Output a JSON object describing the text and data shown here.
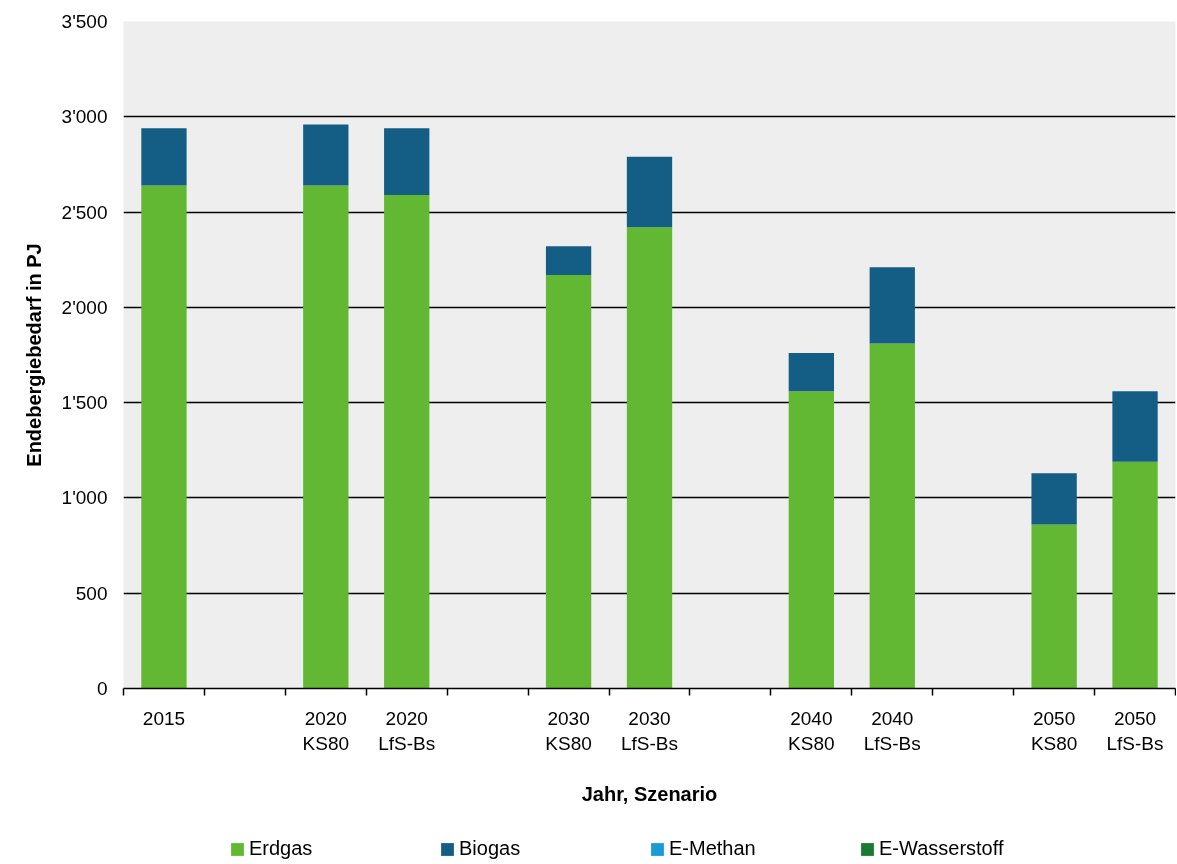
{
  "chart_data": {
    "type": "bar",
    "stacked": true,
    "xlabel": "Jahr, Szenario",
    "ylabel": "Endebergiebedarf in PJ",
    "categories": [
      "2015",
      null,
      "2020\nKS80",
      "2020\nLfS-Bs",
      null,
      "2030\nKS80",
      "2030\nLfS-Bs",
      null,
      "2040\nKS80",
      "2040\nLfS-Bs",
      null,
      "2050\nKS80",
      "2050\nLfS-Bs"
    ],
    "series": [
      {
        "name": "Erdgas",
        "color": "#62b733",
        "values": [
          2640,
          null,
          2640,
          2590,
          null,
          2170,
          2420,
          null,
          1560,
          1810,
          null,
          860,
          1190
        ]
      },
      {
        "name": "Biogas",
        "color": "#145e86",
        "values": [
          300,
          null,
          320,
          350,
          null,
          150,
          370,
          null,
          200,
          400,
          null,
          270,
          370
        ]
      },
      {
        "name": "E-Methan",
        "color": "#1a9ad6",
        "values": [
          0,
          null,
          0,
          0,
          null,
          0,
          0,
          null,
          0,
          0,
          null,
          0,
          0
        ]
      },
      {
        "name": "E-Wasserstoff",
        "color": "#1a7a30",
        "values": [
          0,
          null,
          0,
          0,
          null,
          0,
          0,
          null,
          0,
          0,
          null,
          0,
          0
        ]
      }
    ],
    "ylim": [
      0,
      3500
    ],
    "yticks": [
      0,
      500,
      {
        "value": 1000,
        "label": "1'000"
      },
      {
        "value": 1500,
        "label": "1'500"
      },
      {
        "value": 2000,
        "label": "2'000"
      },
      {
        "value": 2500,
        "label": "2'500"
      },
      {
        "value": 3000,
        "label": "3'000"
      },
      {
        "value": 3500,
        "label": "3'500"
      }
    ],
    "grid": "y",
    "legend": "bottom"
  }
}
